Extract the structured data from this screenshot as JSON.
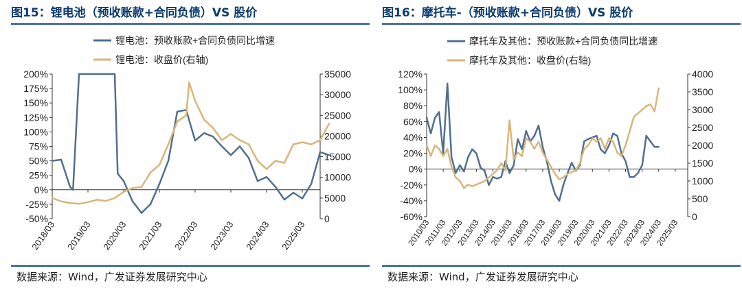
{
  "charts": [
    {
      "title": "图15：锂电池（预收账款+合同负债）VS 股价",
      "source": "数据来源：Wind，广发证券发展研究中心",
      "legend": [
        "锂电池：预收账款+合同负债同比增速",
        "锂电池：收盘价(右轴)"
      ],
      "left_ticks": [
        "200%",
        "175%",
        "150%",
        "125%",
        "100%",
        "75%",
        "50%",
        "25%",
        "0%",
        "-25%",
        "-50%"
      ],
      "right_ticks": [
        "35000",
        "30000",
        "25000",
        "20000",
        "15000",
        "10000",
        "5000",
        "0"
      ],
      "x_ticks": [
        "2018/03",
        "2019/03",
        "2020/03",
        "2021/03",
        "2022/03",
        "2023/03",
        "2024/03",
        "2025/03"
      ]
    },
    {
      "title": "图16：摩托车-（预收账款+合同负债）VS 股价",
      "source": "数据来源：Wind，广发证券发展研究中心",
      "legend": [
        "摩托车及其他：预收账款+合同负债同比增速",
        "摩托车及其他：收盘价(右轴)"
      ],
      "left_ticks": [
        "120%",
        "100%",
        "80%",
        "60%",
        "40%",
        "20%",
        "0%",
        "-20%",
        "-40%",
        "-60%"
      ],
      "right_ticks": [
        "4000",
        "3500",
        "3000",
        "2500",
        "2000",
        "1500",
        "1000",
        "500",
        "0"
      ],
      "x_ticks": [
        "2010/03",
        "2011/03",
        "2012/03",
        "2013/03",
        "2014/03",
        "2015/03",
        "2016/03",
        "2017/03",
        "2018/03",
        "2019/03",
        "2020/03",
        "2021/03",
        "2022/03",
        "2023/03",
        "2024/03",
        "2025/03"
      ]
    }
  ],
  "chart_data": [
    {
      "type": "line",
      "title": "锂电池（预收账款+合同负债）VS 股价",
      "y_left_range": [
        -0.5,
        2.0
      ],
      "y_right_range": [
        0,
        35000
      ],
      "x_range": [
        "2018/03",
        "2025/09"
      ],
      "series": [
        {
          "name": "锂电池：预收账款+合同负债同比增速",
          "axis": "left",
          "color": "#4f6f8f",
          "points": [
            [
              "2018/03",
              0.5
            ],
            [
              "2018/06",
              0.52
            ],
            [
              "2018/09",
              0.05
            ],
            [
              "2018/10",
              0.0
            ],
            [
              "2018/12",
              2.0
            ],
            [
              "2019/12",
              2.0
            ],
            [
              "2020/01",
              0.28
            ],
            [
              "2020/03",
              0.15
            ],
            [
              "2020/06",
              -0.2
            ],
            [
              "2020/09",
              -0.4
            ],
            [
              "2020/12",
              -0.25
            ],
            [
              "2021/03",
              0.1
            ],
            [
              "2021/06",
              0.5
            ],
            [
              "2021/09",
              1.35
            ],
            [
              "2021/12",
              1.38
            ],
            [
              "2022/03",
              0.85
            ],
            [
              "2022/06",
              0.98
            ],
            [
              "2022/09",
              0.92
            ],
            [
              "2022/12",
              0.75
            ],
            [
              "2023/03",
              0.6
            ],
            [
              "2023/06",
              0.75
            ],
            [
              "2023/09",
              0.55
            ],
            [
              "2023/12",
              0.15
            ],
            [
              "2024/03",
              0.22
            ],
            [
              "2024/06",
              0.05
            ],
            [
              "2024/09",
              -0.17
            ],
            [
              "2024/12",
              -0.05
            ],
            [
              "2025/03",
              -0.15
            ],
            [
              "2025/06",
              0.1
            ],
            [
              "2025/09",
              0.65
            ],
            [
              "2025/12",
              0.6
            ]
          ]
        },
        {
          "name": "锂电池：收盘价(右轴)",
          "axis": "right",
          "color": "#d9b57a",
          "points": [
            [
              "2018/03",
              5000
            ],
            [
              "2018/06",
              4200
            ],
            [
              "2018/09",
              3800
            ],
            [
              "2018/12",
              3600
            ],
            [
              "2019/03",
              4000
            ],
            [
              "2019/06",
              4600
            ],
            [
              "2019/09",
              4300
            ],
            [
              "2019/12",
              5000
            ],
            [
              "2020/03",
              6500
            ],
            [
              "2020/06",
              7400
            ],
            [
              "2020/09",
              7700
            ],
            [
              "2020/12",
              11200
            ],
            [
              "2021/03",
              13000
            ],
            [
              "2021/06",
              18000
            ],
            [
              "2021/09",
              23500
            ],
            [
              "2021/12",
              25000
            ],
            [
              "2022/01",
              33000
            ],
            [
              "2022/03",
              28500
            ],
            [
              "2022/06",
              24000
            ],
            [
              "2022/09",
              22000
            ],
            [
              "2022/12",
              19000
            ],
            [
              "2023/03",
              20500
            ],
            [
              "2023/06",
              19000
            ],
            [
              "2023/09",
              18000
            ],
            [
              "2023/12",
              14000
            ],
            [
              "2024/03",
              12000
            ],
            [
              "2024/06",
              14000
            ],
            [
              "2024/09",
              13500
            ],
            [
              "2024/12",
              18000
            ],
            [
              "2025/03",
              18500
            ],
            [
              "2025/06",
              18000
            ],
            [
              "2025/09",
              19000
            ],
            [
              "2025/12",
              23000
            ]
          ]
        }
      ]
    },
    {
      "type": "line",
      "title": "摩托车-（预收账款+合同负债）VS 股价",
      "y_left_range": [
        -0.6,
        1.2
      ],
      "y_right_range": [
        0,
        4000
      ],
      "x_range": [
        "2010/03",
        "2025/12"
      ],
      "series": [
        {
          "name": "摩托车及其他：预收账款+合同负债同比增速",
          "axis": "left",
          "color": "#4f6f8f",
          "points": [
            [
              "2010/03",
              0.65
            ],
            [
              "2010/06",
              0.45
            ],
            [
              "2010/09",
              0.65
            ],
            [
              "2010/12",
              0.72
            ],
            [
              "2011/03",
              0.2
            ],
            [
              "2011/06",
              1.08
            ],
            [
              "2011/09",
              0.15
            ],
            [
              "2011/12",
              -0.05
            ],
            [
              "2012/03",
              0.05
            ],
            [
              "2012/06",
              -0.03
            ],
            [
              "2012/09",
              0.15
            ],
            [
              "2012/12",
              0.25
            ],
            [
              "2013/03",
              0.2
            ],
            [
              "2013/06",
              0.02
            ],
            [
              "2013/09",
              -0.02
            ],
            [
              "2013/12",
              -0.2
            ],
            [
              "2014/03",
              -0.1
            ],
            [
              "2014/06",
              -0.12
            ],
            [
              "2014/09",
              -0.1
            ],
            [
              "2014/12",
              0.1
            ],
            [
              "2015/03",
              -0.05
            ],
            [
              "2015/06",
              0.05
            ],
            [
              "2015/09",
              0.38
            ],
            [
              "2015/12",
              0.25
            ],
            [
              "2016/03",
              0.48
            ],
            [
              "2016/06",
              0.35
            ],
            [
              "2016/09",
              0.42
            ],
            [
              "2016/12",
              0.55
            ],
            [
              "2017/03",
              0.28
            ],
            [
              "2017/06",
              0.1
            ],
            [
              "2017/09",
              -0.15
            ],
            [
              "2017/12",
              -0.32
            ],
            [
              "2018/03",
              -0.4
            ],
            [
              "2018/06",
              -0.2
            ],
            [
              "2018/09",
              -0.05
            ],
            [
              "2018/12",
              0.08
            ],
            [
              "2019/03",
              -0.02
            ],
            [
              "2019/06",
              0.05
            ],
            [
              "2019/09",
              0.35
            ],
            [
              "2019/12",
              0.38
            ],
            [
              "2020/03",
              0.4
            ],
            [
              "2020/06",
              0.42
            ],
            [
              "2020/09",
              0.25
            ],
            [
              "2020/12",
              0.2
            ],
            [
              "2021/03",
              0.3
            ],
            [
              "2021/06",
              0.45
            ],
            [
              "2021/09",
              0.42
            ],
            [
              "2021/12",
              0.2
            ],
            [
              "2022/03",
              0.1
            ],
            [
              "2022/06",
              -0.1
            ],
            [
              "2022/09",
              -0.1
            ],
            [
              "2022/12",
              -0.05
            ],
            [
              "2023/03",
              0.05
            ],
            [
              "2023/06",
              0.42
            ],
            [
              "2023/09",
              0.35
            ],
            [
              "2023/12",
              0.28
            ],
            [
              "2024/03",
              0.28
            ]
          ]
        },
        {
          "name": "摩托车及其他：收盘价(右轴)",
          "axis": "right",
          "color": "#d9b57a",
          "points": [
            [
              "2010/03",
              2000
            ],
            [
              "2010/06",
              1700
            ],
            [
              "2010/09",
              2000
            ],
            [
              "2010/12",
              1900
            ],
            [
              "2011/03",
              1700
            ],
            [
              "2011/06",
              1900
            ],
            [
              "2011/09",
              1400
            ],
            [
              "2011/12",
              1100
            ],
            [
              "2012/03",
              1000
            ],
            [
              "2012/06",
              800
            ],
            [
              "2012/09",
              900
            ],
            [
              "2012/12",
              850
            ],
            [
              "2013/03",
              900
            ],
            [
              "2013/06",
              950
            ],
            [
              "2013/09",
              1000
            ],
            [
              "2013/12",
              1100
            ],
            [
              "2014/03",
              1200
            ],
            [
              "2014/06",
              1300
            ],
            [
              "2014/09",
              1500
            ],
            [
              "2014/12",
              1300
            ],
            [
              "2015/03",
              2700
            ],
            [
              "2015/06",
              1600
            ],
            [
              "2015/09",
              1800
            ],
            [
              "2015/12",
              1700
            ],
            [
              "2016/03",
              2200
            ],
            [
              "2016/06",
              2100
            ],
            [
              "2016/09",
              1900
            ],
            [
              "2016/12",
              2100
            ],
            [
              "2017/03",
              1800
            ],
            [
              "2017/06",
              1600
            ],
            [
              "2017/09",
              1400
            ],
            [
              "2017/12",
              1200
            ],
            [
              "2018/03",
              1050
            ],
            [
              "2018/06",
              1100
            ],
            [
              "2018/09",
              1200
            ],
            [
              "2018/12",
              1250
            ],
            [
              "2019/03",
              1300
            ],
            [
              "2019/06",
              1500
            ],
            [
              "2019/09",
              1900
            ],
            [
              "2019/12",
              2000
            ],
            [
              "2020/03",
              2200
            ],
            [
              "2020/06",
              2100
            ],
            [
              "2020/09",
              2200
            ],
            [
              "2020/12",
              1900
            ],
            [
              "2021/03",
              2200
            ],
            [
              "2021/06",
              2100
            ],
            [
              "2021/09",
              1800
            ],
            [
              "2021/12",
              1700
            ],
            [
              "2022/03",
              2000
            ],
            [
              "2022/06",
              2400
            ],
            [
              "2022/09",
              2800
            ],
            [
              "2022/12",
              2900
            ],
            [
              "2023/03",
              3000
            ],
            [
              "2023/06",
              3100
            ],
            [
              "2023/09",
              3150
            ],
            [
              "2023/12",
              2950
            ],
            [
              "2024/03",
              3600
            ]
          ]
        }
      ]
    }
  ]
}
